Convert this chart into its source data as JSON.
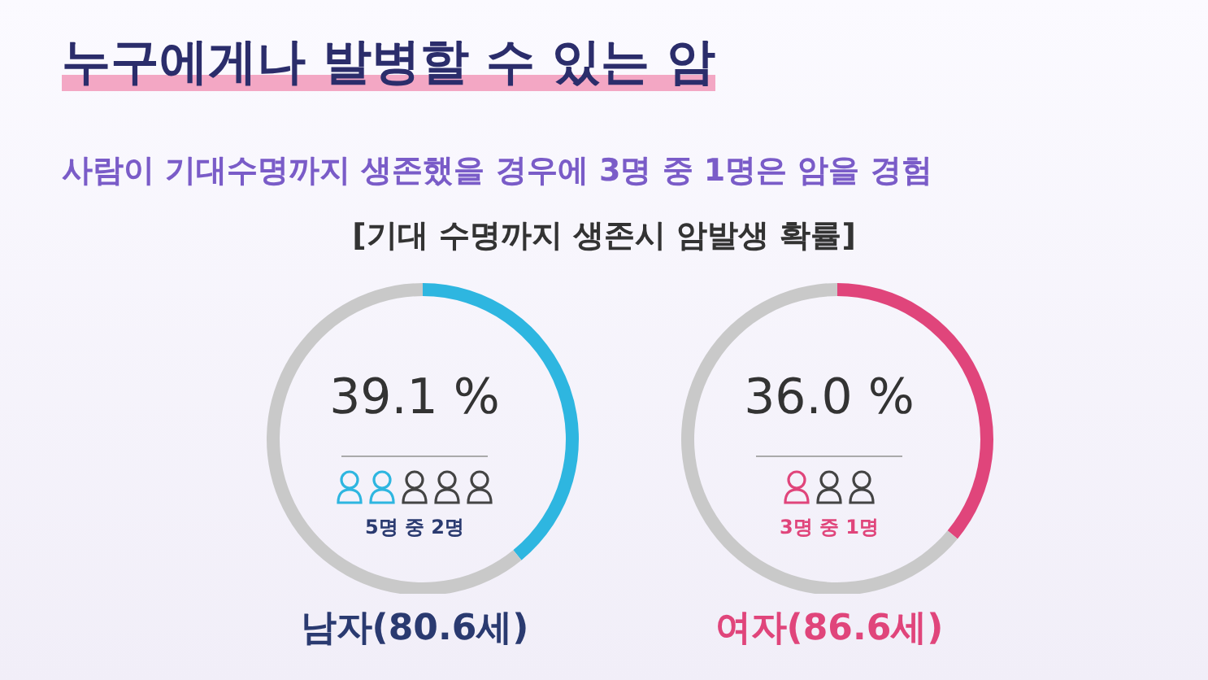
{
  "chart_data": [
    {
      "type": "donut",
      "title": "누구에게나 발병할 수 있는 암",
      "subtitle": "사람이 기대수명까지 생존했을 경우에 3명 중 1명은 암을 경험",
      "annotations": [
        "[기대 수명까지 생존시 암발생 확률]",
        "5명 중 2명"
      ],
      "xlabel": "남자(80.6세)",
      "categories": [
        null,
        null
      ],
      "values": [
        39.1,
        60.9
      ],
      "colors": [
        "#2eb6e0",
        "#c9c9c9"
      ],
      "value_labels": [
        "39.1 %",
        null
      ],
      "legend": false
    },
    {
      "type": "donut",
      "annotations": [
        "3명 중 1명"
      ],
      "xlabel": "여자(86.6세)",
      "categories": [
        null,
        null
      ],
      "values": [
        36.0,
        64.0
      ],
      "colors": [
        "#e0457b",
        "#c9c9c9"
      ],
      "value_labels": [
        "36.0 %",
        null
      ],
      "legend": false
    }
  ]
}
